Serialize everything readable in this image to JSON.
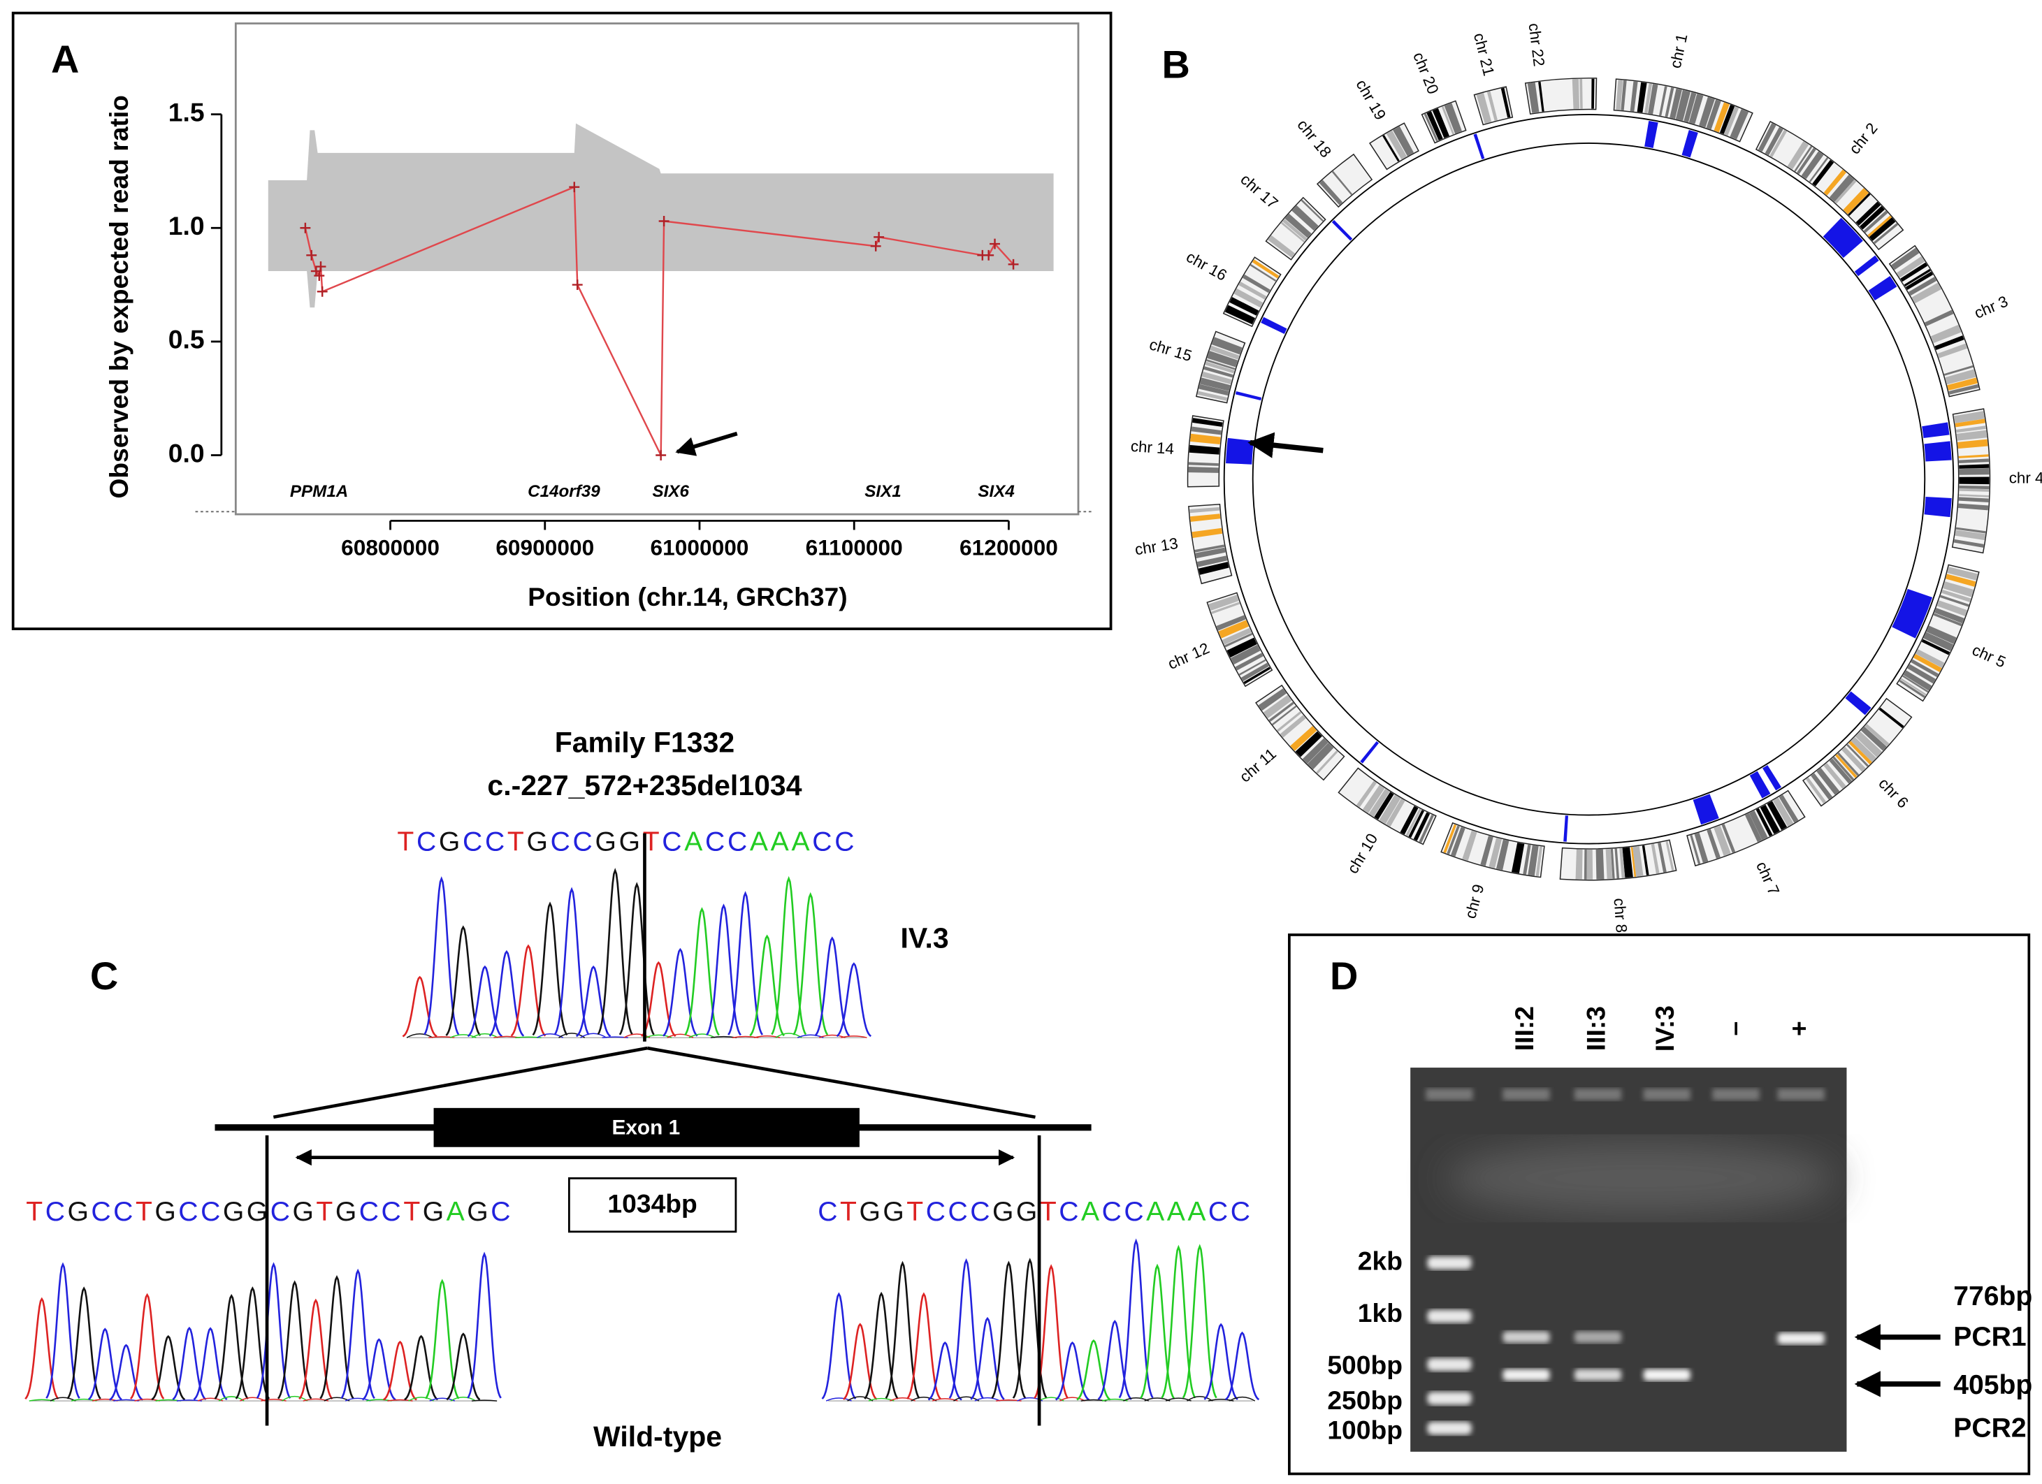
{
  "panels": [
    "A",
    "B",
    "C",
    "D"
  ],
  "chart_data": {
    "type": "line",
    "y_label": "Observed by expected read ratio",
    "x_label": "Position (chr.14, GRCh37)",
    "x": [
      60745000,
      60749000,
      60752000,
      60754000,
      60755000,
      60756000,
      60919000,
      60921000,
      60975000,
      60977000,
      61114000,
      61116000,
      61183000,
      61187000,
      61191000,
      61203000
    ],
    "values": [
      1.0,
      0.88,
      0.81,
      0.79,
      0.83,
      0.72,
      1.18,
      0.75,
      0.0,
      1.03,
      0.92,
      0.96,
      0.88,
      0.88,
      0.93,
      0.84
    ],
    "color": "#e0474c",
    "band": {
      "x": [
        60721000,
        60746000,
        60748000,
        60751000,
        60753000,
        60919000,
        60920000,
        60974000,
        60975000,
        61229000
      ],
      "upper": [
        1.21,
        1.21,
        1.43,
        1.43,
        1.33,
        1.33,
        1.46,
        1.26,
        1.24,
        1.24
      ],
      "lower": [
        0.81,
        0.81,
        0.65,
        0.65,
        0.81,
        0.81,
        0.81,
        0.81,
        0.81,
        0.81
      ],
      "color": "#c4c4c4"
    },
    "genes": [
      "PPM1A",
      "C14orf39",
      "SIX6",
      "SIX1",
      "SIX4"
    ],
    "xlim": [
      60700000,
      61245000
    ],
    "ylim": [
      -0.26,
      1.9
    ],
    "xticks": [
      60800000,
      60900000,
      61000000,
      61100000,
      61200000
    ],
    "yticks": [
      {
        "value": 0,
        "label": "0.0"
      },
      0.5,
      {
        "value": 1,
        "label": "1.0"
      },
      1.5
    ]
  },
  "circos": {
    "chromosomes": [
      "chr 1",
      "chr 2",
      "chr 3",
      "chr 4",
      "chr 5",
      "chr 6",
      "chr 7",
      "chr 8",
      "chr 9",
      "chr 10",
      "chr 11",
      "chr 12",
      "chr 13",
      "chr 14",
      "chr 15",
      "chr 16",
      "chr 17",
      "chr 18",
      "chr 19",
      "chr 20",
      "chr 21",
      "chr 22"
    ]
  },
  "sequencing": {
    "family": "Family F1332",
    "variant": "c.-227_572+235del1034",
    "mutant": {
      "sequence": "TCGCCTGCCGGTCACCAAACC",
      "sample": "IV.3"
    },
    "exon": "Exon 1",
    "deletion": "1034bp",
    "wild_type": {
      "left": "TCGCCTGCCGGCGTGCCTGAGC",
      "right": "CTGGTCCCGGTCACCAAACC",
      "label": "Wild-type"
    }
  },
  "gel": {
    "lanes": [
      "III:2",
      "III:3",
      "IV:3",
      "–",
      "+"
    ],
    "ladder": [
      "2kb",
      "1kb",
      "500bp",
      "250bp",
      "100bp"
    ],
    "products": [
      "776bp",
      "PCR1",
      "405bp",
      "PCR2"
    ]
  }
}
